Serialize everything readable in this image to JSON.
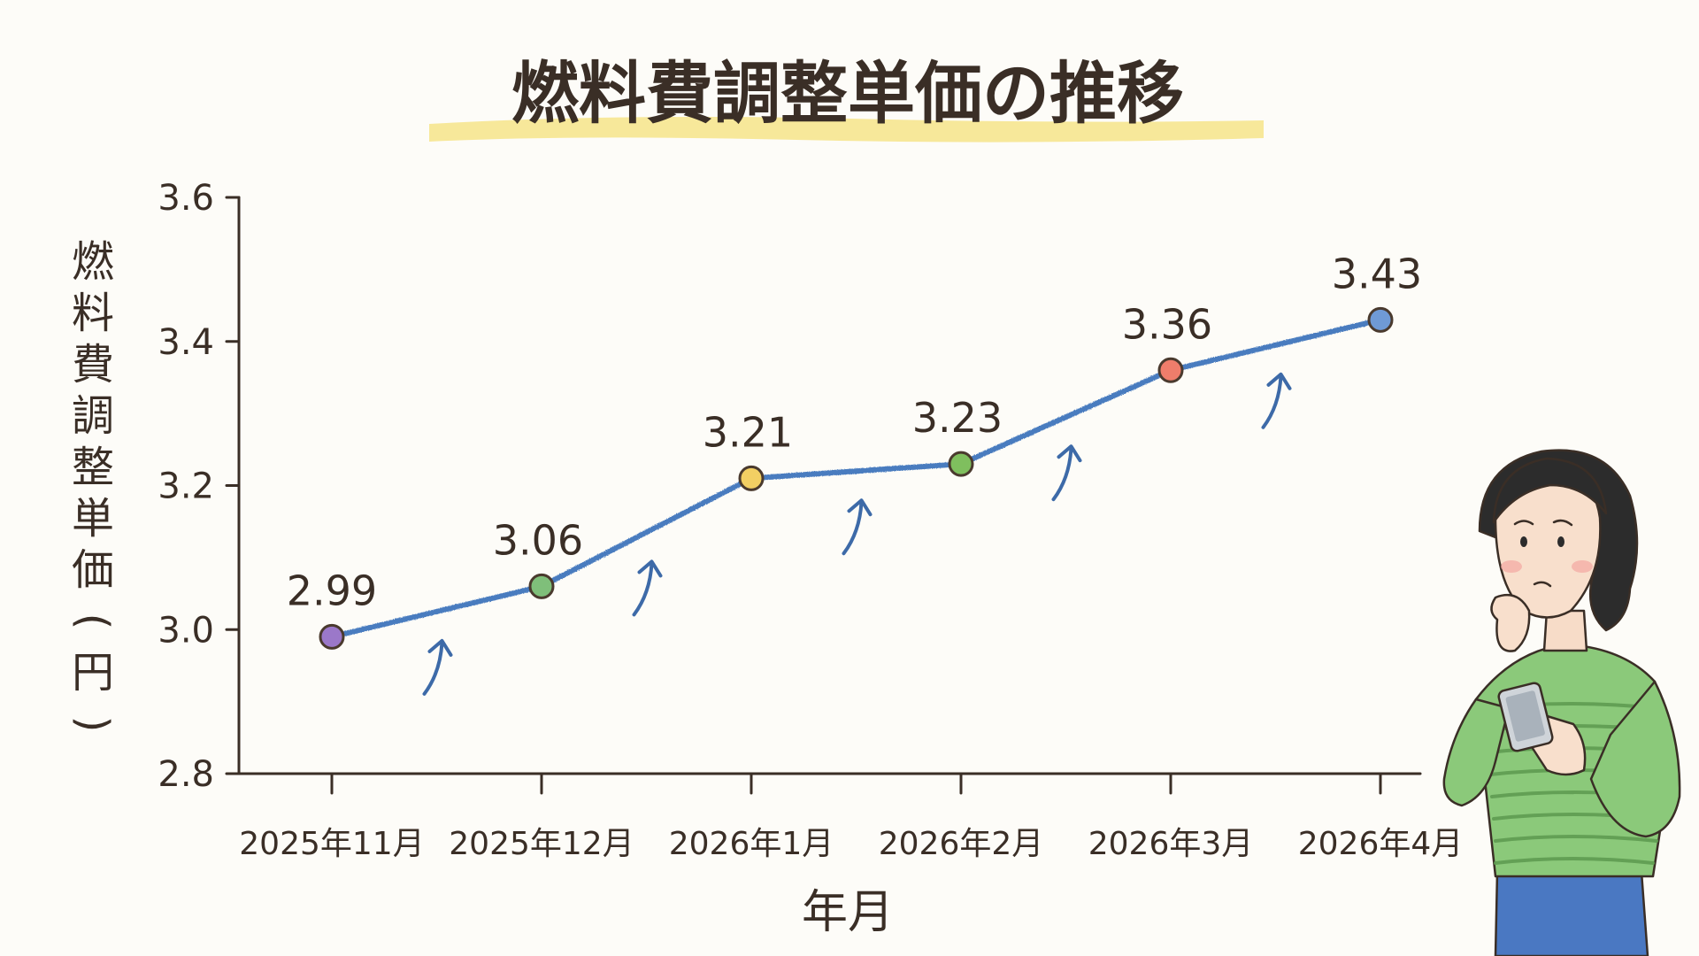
{
  "chart_data": {
    "type": "line",
    "title": "燃料費調整単価の推移",
    "xlabel": "年月",
    "ylabel": "燃料費調整単価(円)",
    "categories": [
      "2025年11月",
      "2025年12月",
      "2026年1月",
      "2026年2月",
      "2026年3月",
      "2026年4月"
    ],
    "series": [
      {
        "values": [
          2.99,
          3.06,
          3.21,
          3.23,
          3.36,
          3.43
        ]
      }
    ],
    "value_labels": [
      "2.99",
      "3.06",
      "3.21",
      "3.23",
      "3.36",
      "3.43"
    ],
    "yticks": [
      "2.8",
      "3.0",
      "3.2",
      "3.4",
      "3.6"
    ],
    "ylim": [
      2.8,
      3.6
    ],
    "grid": false,
    "legend": "none",
    "colors": {
      "line": "#4a7cbf",
      "axis": "#3a2e26",
      "text": "#3a2e26",
      "title_highlight": "#f6e48a",
      "arrows": "#3d6aa8",
      "points": [
        "#9b78c9",
        "#7fbf7a",
        "#f2cf63",
        "#7fbf5e",
        "#ef7d6b",
        "#6f9ad6"
      ]
    }
  },
  "decorations": {
    "illustration": "woman-looking-at-phone-worried",
    "trend_markers": "up-arrow-icons"
  }
}
